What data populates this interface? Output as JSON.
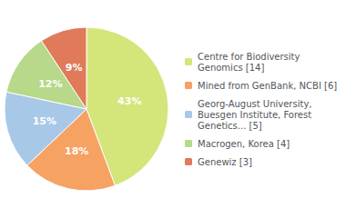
{
  "chart_data": {
    "type": "pie",
    "categories": [
      "Centre for Biodiversity\nGenomics [14]",
      "Mined from GenBank, NCBI [6]",
      "Georg-August University,\nBuesgen Institute, Forest\nGenetics... [5]",
      "Macrogen, Korea [4]",
      "Genewiz [3]"
    ],
    "values": [
      43,
      18,
      15,
      12,
      9
    ],
    "value_labels": [
      "43%",
      "18%",
      "15%",
      "12%",
      "9%"
    ],
    "colors": [
      "#d4e57a",
      "#f5a263",
      "#a8c8e8",
      "#b8d88a",
      "#e07a5a"
    ],
    "data_labels": true,
    "legend": "right"
  }
}
